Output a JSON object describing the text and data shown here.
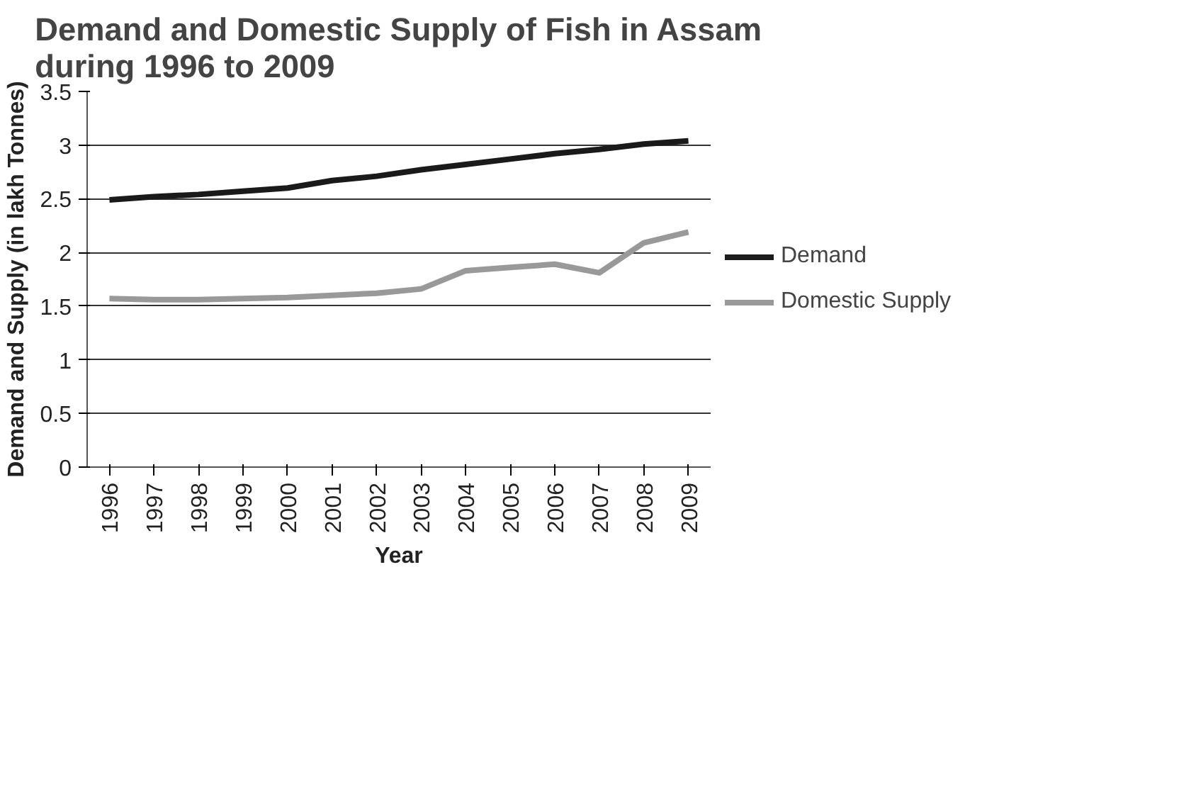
{
  "chart_data": {
    "type": "line",
    "title": "Demand and Domestic Supply of Fish in Assam\nduring 1996 to 2009",
    "xlabel": "Year",
    "ylabel": "Demand and Supply (in lakh Tonnes)",
    "categories": [
      "1996",
      "1997",
      "1998",
      "1999",
      "2000",
      "2001",
      "2002",
      "2003",
      "2004",
      "2005",
      "2006",
      "2007",
      "2008",
      "2009"
    ],
    "series": [
      {
        "name": "Demand",
        "color": "#1a1a1a",
        "values": [
          2.49,
          2.52,
          2.54,
          2.57,
          2.6,
          2.67,
          2.71,
          2.77,
          2.82,
          2.87,
          2.92,
          2.96,
          3.01,
          3.04
        ]
      },
      {
        "name": "Domestic Supply",
        "color": "#999999",
        "values": [
          1.57,
          1.56,
          1.56,
          1.57,
          1.58,
          1.6,
          1.62,
          1.66,
          1.83,
          1.86,
          1.89,
          1.81,
          2.09,
          2.19
        ]
      }
    ],
    "ylim": [
      0,
      3.5
    ],
    "yticks": [
      0,
      0.5,
      1,
      1.5,
      2,
      2.5,
      3,
      3.5
    ],
    "grid": "y",
    "legend": "right",
    "marker": "none",
    "line_style": "solid"
  }
}
